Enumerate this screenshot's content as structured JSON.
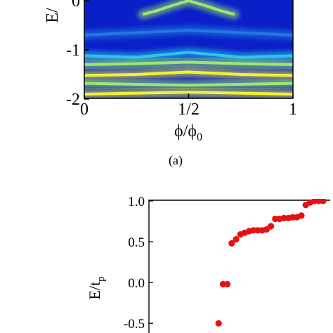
{
  "chart_data": [
    {
      "type": "heatmap",
      "panel_label": "(a)",
      "xlabel": "ϕ/ϕ",
      "xlabel_sub": "0",
      "ylabel": "E/",
      "xticks": [
        {
          "value": 0,
          "label": "0"
        },
        {
          "value": 0.5,
          "label": "1/2"
        },
        {
          "value": 1,
          "label": "1"
        }
      ],
      "yticks": [
        {
          "value": 0,
          "label": "0"
        },
        {
          "value": -1,
          "label": "-1"
        },
        {
          "value": -2,
          "label": "-2"
        }
      ],
      "xlim": [
        0,
        1
      ],
      "ylim": [
        -2,
        0.12
      ],
      "colormap": [
        "#0a1fc8",
        "#1f7be0",
        "#28c8e8",
        "#9be86a",
        "#f2f232"
      ],
      "background_color": "#0a1fc8",
      "bands": [
        {
          "name": "upper-band",
          "x": [
            0.28,
            0.35,
            0.42,
            0.5,
            0.58,
            0.65,
            0.72
          ],
          "y": [
            -0.28,
            -0.2,
            -0.1,
            0.0,
            -0.1,
            -0.2,
            -0.28
          ],
          "level": 0.85
        },
        {
          "name": "band-1",
          "x": [
            0,
            0.25,
            0.5,
            0.75,
            1
          ],
          "y": [
            -0.7,
            -0.65,
            -0.6,
            -0.65,
            -0.7
          ],
          "level": 0.3
        },
        {
          "name": "band-2",
          "x": [
            0,
            0.25,
            0.5,
            0.75,
            1
          ],
          "y": [
            -1.12,
            -1.15,
            -1.05,
            -1.15,
            -1.12
          ],
          "level": 0.45
        },
        {
          "name": "band-3",
          "x": [
            0,
            0.25,
            0.5,
            0.75,
            1
          ],
          "y": [
            -1.3,
            -1.28,
            -1.25,
            -1.28,
            -1.3
          ],
          "level": 0.7
        },
        {
          "name": "band-4",
          "x": [
            0,
            0.25,
            0.5,
            0.75,
            1
          ],
          "y": [
            -1.52,
            -1.5,
            -1.45,
            -1.5,
            -1.52
          ],
          "level": 0.9
        },
        {
          "name": "band-5",
          "x": [
            0,
            0.25,
            0.5,
            0.75,
            1
          ],
          "y": [
            -1.68,
            -1.7,
            -1.72,
            -1.7,
            -1.68
          ],
          "level": 0.8
        },
        {
          "name": "band-6",
          "x": [
            0,
            0.25,
            0.5,
            0.75,
            1
          ],
          "y": [
            -1.9,
            -1.88,
            -1.86,
            -1.88,
            -1.9
          ],
          "level": 0.9
        }
      ]
    },
    {
      "type": "scatter",
      "ylabel": "E/t",
      "ylabel_sub": "p",
      "yticks": [
        {
          "value": 1.0,
          "label": "1.0"
        },
        {
          "value": 0.5,
          "label": "0.5"
        },
        {
          "value": 0.0,
          "label": "0.0"
        },
        {
          "value": -0.5,
          "label": "-0.5"
        }
      ],
      "ylim": [
        -0.55,
        1.0
      ],
      "xlim": [
        0,
        40
      ],
      "point_color": "#e81010",
      "x": [
        16,
        17,
        18,
        19,
        20,
        21,
        22,
        23,
        24,
        25,
        26,
        27,
        28,
        29,
        30,
        31,
        32,
        33,
        34,
        35,
        36,
        37,
        38,
        39,
        40
      ],
      "y": [
        -0.5,
        -0.02,
        -0.02,
        0.48,
        0.53,
        0.59,
        0.61,
        0.63,
        0.64,
        0.64,
        0.64,
        0.65,
        0.69,
        0.78,
        0.78,
        0.79,
        0.79,
        0.8,
        0.8,
        0.82,
        0.95,
        0.98,
        1.0,
        1.0,
        1.0
      ]
    }
  ]
}
